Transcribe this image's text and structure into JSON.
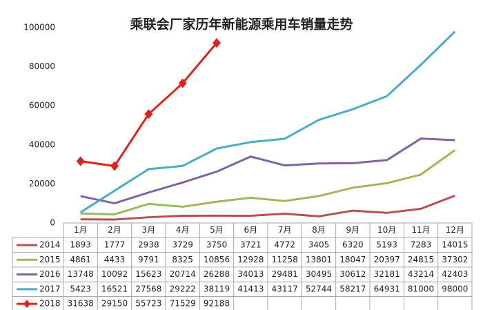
{
  "chart_data": {
    "type": "line",
    "title": "乘联会厂家历年新能源乘用车销量走势",
    "categories": [
      "1月",
      "2月",
      "3月",
      "4月",
      "5月",
      "6月",
      "7月",
      "8月",
      "9月",
      "10月",
      "11月",
      "12月"
    ],
    "series": [
      {
        "name": "2014",
        "color": "#b5524e",
        "values": [
          1893,
          1777,
          2938,
          3729,
          3750,
          3721,
          4772,
          3405,
          6320,
          5193,
          7283,
          14015
        ]
      },
      {
        "name": "2015",
        "color": "#9bbb59",
        "values": [
          4861,
          4433,
          9791,
          8325,
          10856,
          12928,
          11258,
          13801,
          18047,
          20397,
          24815,
          37302
        ]
      },
      {
        "name": "2016",
        "color": "#8064a2",
        "values": [
          13748,
          10092,
          15623,
          20714,
          26288,
          34013,
          29481,
          30495,
          30612,
          32181,
          43214,
          42403
        ]
      },
      {
        "name": "2017",
        "color": "#4bacc6",
        "values": [
          5423,
          16521,
          27568,
          29222,
          38119,
          41413,
          43117,
          52744,
          58217,
          64931,
          81000,
          98000
        ]
      },
      {
        "name": "2018",
        "color": "#e3211c",
        "marker": "diamond",
        "values": [
          31638,
          29150,
          55723,
          71529,
          92188,
          null,
          null,
          null,
          null,
          null,
          null,
          null
        ]
      }
    ],
    "ylim": [
      0,
      100000
    ],
    "yticks": [
      0,
      20000,
      40000,
      60000,
      80000,
      100000
    ],
    "grid": false
  }
}
